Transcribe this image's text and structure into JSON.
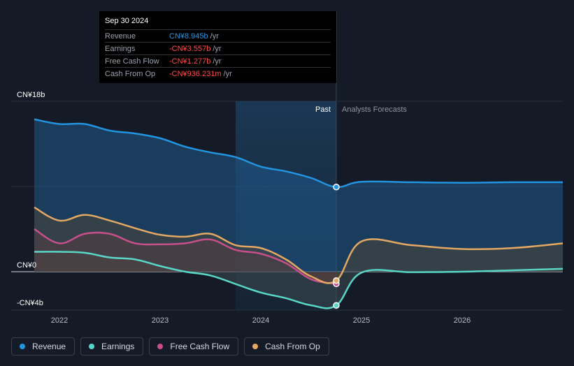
{
  "tooltip": {
    "date": "Sep 30 2024",
    "rows": [
      {
        "label": "Revenue",
        "value": "CN¥8.945b",
        "unit": "/yr",
        "color": "#2394df"
      },
      {
        "label": "Earnings",
        "value": "-CN¥3.557b",
        "unit": "/yr",
        "color": "#ff4d4d"
      },
      {
        "label": "Free Cash Flow",
        "value": "-CN¥1.277b",
        "unit": "/yr",
        "color": "#ff4d4d"
      },
      {
        "label": "Cash From Op",
        "value": "-CN¥936.231m",
        "unit": "/yr",
        "color": "#ff4d4d"
      }
    ]
  },
  "legend": [
    {
      "label": "Revenue",
      "color": "#2394df"
    },
    {
      "label": "Earnings",
      "color": "#58d7c6"
    },
    {
      "label": "Free Cash Flow",
      "color": "#c8508a"
    },
    {
      "label": "Cash From Op",
      "color": "#e3a863"
    }
  ],
  "chart_data": {
    "type": "area",
    "past_label": "Past",
    "forecast_label": "Analysts Forecasts",
    "y_tick_labels": [
      {
        "value": 18,
        "label": "CN¥18b"
      },
      {
        "value": 0,
        "label": "CN¥0"
      },
      {
        "value": -4,
        "label": "-CN¥4b"
      }
    ],
    "ylim": [
      -4,
      18
    ],
    "xlim": [
      2021.7,
      2027.0
    ],
    "x_ticks": [
      2022,
      2023,
      2024,
      2025,
      2026
    ],
    "x_tick_labels": [
      "2022",
      "2023",
      "2024",
      "2025",
      "2026"
    ],
    "highlight_range": [
      2023.75,
      2024.75
    ],
    "divider_x": 2024.75,
    "series": [
      {
        "name": "Revenue",
        "color": "#2394df",
        "x": [
          2021.75,
          2022.0,
          2022.25,
          2022.5,
          2022.75,
          2023.0,
          2023.25,
          2023.5,
          2023.75,
          2024.0,
          2024.25,
          2024.5,
          2024.75,
          2025.0,
          2025.5,
          2026.0,
          2026.5,
          2027.0
        ],
        "y": [
          16.1,
          15.6,
          15.6,
          14.9,
          14.6,
          14.1,
          13.2,
          12.6,
          12.1,
          11.1,
          10.6,
          9.9,
          8.945,
          9.5,
          9.45,
          9.4,
          9.45,
          9.45
        ]
      },
      {
        "name": "Earnings",
        "color": "#58d7c6",
        "x": [
          2021.75,
          2022.0,
          2022.25,
          2022.5,
          2022.75,
          2023.0,
          2023.25,
          2023.5,
          2023.75,
          2024.0,
          2024.25,
          2024.5,
          2024.75,
          2025.0,
          2025.5,
          2026.0,
          2026.5,
          2027.0
        ],
        "y": [
          2.1,
          2.1,
          2.0,
          1.5,
          1.3,
          0.6,
          0.0,
          -0.4,
          -1.3,
          -2.2,
          -2.8,
          -3.55,
          -3.557,
          -0.1,
          -0.05,
          0.0,
          0.15,
          0.3
        ]
      },
      {
        "name": "Free Cash Flow",
        "color": "#c8508a",
        "x": [
          2021.75,
          2022.0,
          2022.25,
          2022.5,
          2022.75,
          2023.0,
          2023.25,
          2023.5,
          2023.75,
          2024.0,
          2024.25,
          2024.5,
          2024.75
        ],
        "y": [
          4.5,
          3.0,
          4.0,
          4.0,
          3.0,
          2.9,
          3.0,
          3.4,
          2.3,
          1.9,
          0.9,
          -0.8,
          -1.277
        ]
      },
      {
        "name": "Cash From Op",
        "color": "#e3a863",
        "x": [
          2021.75,
          2022.0,
          2022.25,
          2022.5,
          2022.75,
          2023.0,
          2023.25,
          2023.5,
          2023.75,
          2024.0,
          2024.25,
          2024.5,
          2024.75,
          2025.0,
          2025.5,
          2026.0,
          2026.5,
          2027.0
        ],
        "y": [
          6.8,
          5.4,
          6.0,
          5.4,
          4.6,
          3.9,
          3.7,
          4.0,
          2.8,
          2.5,
          1.3,
          -0.5,
          -0.936,
          3.2,
          2.8,
          2.4,
          2.5,
          3.0
        ]
      }
    ]
  }
}
